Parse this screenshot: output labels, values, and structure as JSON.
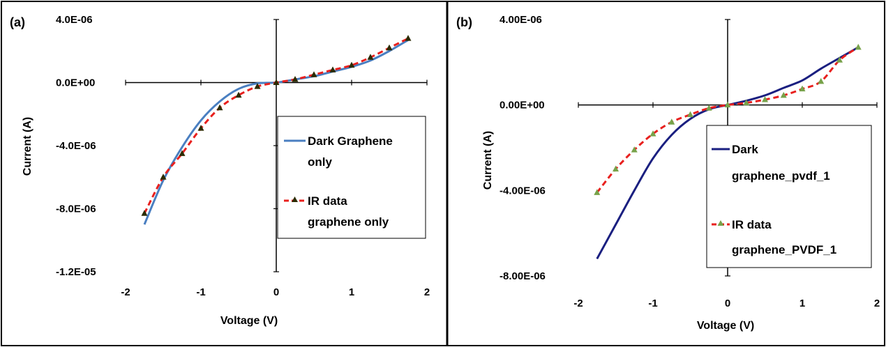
{
  "chart_data": [
    {
      "panel_label": "(a)",
      "type": "line",
      "xlabel": "Voltage (V)",
      "ylabel": "Current (A)",
      "xlim": [
        -2,
        2
      ],
      "ylim": [
        -1.2e-05,
        4e-06
      ],
      "x_ticks": [
        "-2",
        "-1",
        "0",
        "1",
        "2"
      ],
      "y_ticks": [
        "4.0E-06",
        "0.0E+00",
        "-4.0E-06",
        "-8.0E-06",
        "-1.2E-05"
      ],
      "x_tick_values": [
        -2,
        -1,
        0,
        1,
        2
      ],
      "y_tick_values": [
        4e-06,
        0,
        -4e-06,
        -8e-06,
        -1.2e-05
      ],
      "grid": false,
      "legend_position": "right",
      "series": [
        {
          "name_lines": [
            "Dark Graphene",
            "only"
          ],
          "color": "#4a7fc1",
          "style": "solid",
          "marker": "none",
          "x": [
            -1.75,
            -1.5,
            -1.25,
            -1.0,
            -0.75,
            -0.5,
            -0.25,
            0,
            0.25,
            0.5,
            0.75,
            1.0,
            1.25,
            1.5,
            1.75
          ],
          "y": [
            -9e-06,
            -6.2e-06,
            -4.1e-06,
            -2.4e-06,
            -1.2e-06,
            -4e-07,
            -5e-08,
            0,
            2e-07,
            4e-07,
            7e-07,
            1e-06,
            1.4e-06,
            2e-06,
            2.7e-06
          ]
        },
        {
          "name_lines": [
            "IR data",
            "graphene only"
          ],
          "color": "#e8201e",
          "style": "dashed",
          "marker": "triangle",
          "marker_color": "#2b2b00",
          "x": [
            -1.75,
            -1.5,
            -1.25,
            -1.0,
            -0.75,
            -0.5,
            -0.25,
            0,
            0.25,
            0.5,
            0.75,
            1.0,
            1.25,
            1.5,
            1.75
          ],
          "y": [
            -8.3e-06,
            -6e-06,
            -4.5e-06,
            -2.9e-06,
            -1.6e-06,
            -8e-07,
            -2.5e-07,
            0,
            2e-07,
            5e-07,
            8e-07,
            1.1e-06,
            1.6e-06,
            2.2e-06,
            2.8e-06
          ]
        }
      ]
    },
    {
      "panel_label": "(b)",
      "type": "line",
      "xlabel": "Voltage (V)",
      "ylabel": "Current (A)",
      "xlim": [
        -2,
        2
      ],
      "ylim": [
        -8e-06,
        4e-06
      ],
      "x_ticks": [
        "-2",
        "-1",
        "0",
        "1",
        "2"
      ],
      "y_ticks": [
        "4.00E-06",
        "0.00E+00",
        "-4.00E-06",
        "-8.00E-06"
      ],
      "x_tick_values": [
        -2,
        -1,
        0,
        1,
        2
      ],
      "y_tick_values": [
        4e-06,
        0,
        -4e-06,
        -8e-06
      ],
      "grid": false,
      "legend_position": "right",
      "series": [
        {
          "name_lines": [
            "Dark",
            "graphene_pvdf_1"
          ],
          "color": "#1a1f80",
          "style": "solid",
          "marker": "none",
          "x": [
            -1.75,
            -1.5,
            -1.25,
            -1.0,
            -0.75,
            -0.5,
            -0.25,
            0,
            0.25,
            0.5,
            0.75,
            1.0,
            1.25,
            1.5,
            1.75
          ],
          "y": [
            -7.2e-06,
            -5.6e-06,
            -4e-06,
            -2.5e-06,
            -1.4e-06,
            -6.5e-07,
            -2e-07,
            0,
            2e-07,
            4.5e-07,
            8e-07,
            1.15e-06,
            1.7e-06,
            2.2e-06,
            2.7e-06
          ]
        },
        {
          "name_lines": [
            "IR data",
            "graphene_PVDF_1"
          ],
          "color": "#e8201e",
          "style": "dashed",
          "marker": "triangle",
          "marker_color": "#77a24a",
          "x": [
            -1.75,
            -1.5,
            -1.25,
            -1.0,
            -0.75,
            -0.5,
            -0.25,
            0,
            0.25,
            0.5,
            0.75,
            1.0,
            1.25,
            1.5,
            1.75
          ],
          "y": [
            -4.1e-06,
            -3e-06,
            -2.1e-06,
            -1.35e-06,
            -8e-07,
            -4.5e-07,
            -1.5e-07,
            0,
            1e-07,
            2.5e-07,
            4.5e-07,
            7.5e-07,
            1.1e-06,
            2.1e-06,
            2.7e-06
          ]
        }
      ]
    }
  ]
}
